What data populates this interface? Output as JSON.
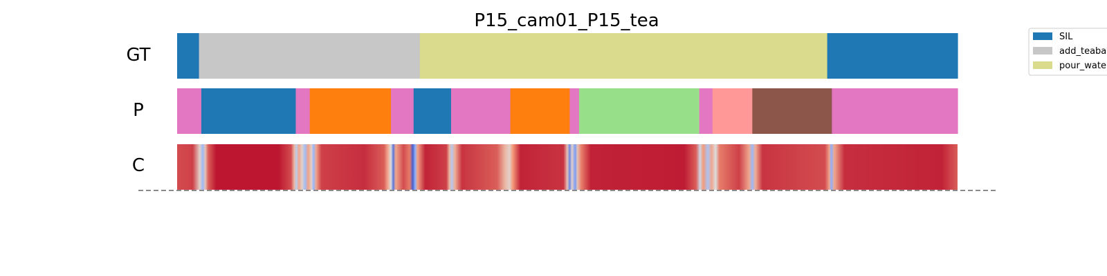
{
  "chart_data": {
    "type": "segmentation-timeline",
    "title": "P15_cam01_P15_tea",
    "rows": [
      {
        "label": "GT",
        "segments": [
          {
            "start": 0.0,
            "end": 0.028,
            "action": "SIL",
            "color": "#1f77b4"
          },
          {
            "start": 0.028,
            "end": 0.311,
            "action": "add_teabag",
            "color": "#c7c7c7"
          },
          {
            "start": 0.311,
            "end": 0.833,
            "action": "pour_water",
            "color": "#dbdb8d"
          },
          {
            "start": 0.833,
            "end": 1.0,
            "action": "SIL",
            "color": "#1f77b4"
          }
        ]
      },
      {
        "label": "P",
        "segments": [
          {
            "start": 0.0,
            "end": 0.031,
            "color": "#e377c2"
          },
          {
            "start": 0.031,
            "end": 0.152,
            "color": "#1f77b4"
          },
          {
            "start": 0.152,
            "end": 0.17,
            "color": "#e377c2"
          },
          {
            "start": 0.17,
            "end": 0.274,
            "color": "#ff7f0e"
          },
          {
            "start": 0.274,
            "end": 0.303,
            "color": "#e377c2"
          },
          {
            "start": 0.303,
            "end": 0.351,
            "color": "#1f77b4"
          },
          {
            "start": 0.351,
            "end": 0.427,
            "color": "#e377c2"
          },
          {
            "start": 0.427,
            "end": 0.503,
            "color": "#ff7f0e"
          },
          {
            "start": 0.503,
            "end": 0.515,
            "color": "#e377c2"
          },
          {
            "start": 0.515,
            "end": 0.669,
            "color": "#98df8a"
          },
          {
            "start": 0.669,
            "end": 0.686,
            "color": "#e377c2"
          },
          {
            "start": 0.686,
            "end": 0.737,
            "color": "#ff9896"
          },
          {
            "start": 0.737,
            "end": 0.839,
            "color": "#8c564b"
          },
          {
            "start": 0.839,
            "end": 1.0,
            "color": "#e377c2"
          }
        ]
      },
      {
        "label": "C",
        "colormap": "coolwarm",
        "confidence_points": [
          [
            0.0,
            0.88
          ],
          [
            0.02,
            0.9
          ],
          [
            0.029,
            0.55
          ],
          [
            0.033,
            0.3
          ],
          [
            0.036,
            0.6
          ],
          [
            0.04,
            0.85
          ],
          [
            0.05,
            0.97
          ],
          [
            0.13,
            0.97
          ],
          [
            0.146,
            0.88
          ],
          [
            0.15,
            0.65
          ],
          [
            0.153,
            0.4
          ],
          [
            0.156,
            0.7
          ],
          [
            0.16,
            0.55
          ],
          [
            0.164,
            0.32
          ],
          [
            0.168,
            0.72
          ],
          [
            0.172,
            0.55
          ],
          [
            0.175,
            0.28
          ],
          [
            0.178,
            0.7
          ],
          [
            0.185,
            0.9
          ],
          [
            0.24,
            0.93
          ],
          [
            0.265,
            0.85
          ],
          [
            0.27,
            0.7
          ],
          [
            0.274,
            0.5
          ],
          [
            0.277,
            0.1
          ],
          [
            0.28,
            0.7
          ],
          [
            0.29,
            0.88
          ],
          [
            0.298,
            0.8
          ],
          [
            0.302,
            0.05
          ],
          [
            0.305,
            0.25
          ],
          [
            0.308,
            0.72
          ],
          [
            0.318,
            0.95
          ],
          [
            0.345,
            0.9
          ],
          [
            0.349,
            0.65
          ],
          [
            0.352,
            0.38
          ],
          [
            0.356,
            0.68
          ],
          [
            0.365,
            0.92
          ],
          [
            0.41,
            0.85
          ],
          [
            0.42,
            0.65
          ],
          [
            0.426,
            0.55
          ],
          [
            0.43,
            0.75
          ],
          [
            0.44,
            0.95
          ],
          [
            0.495,
            0.92
          ],
          [
            0.5,
            0.6
          ],
          [
            0.503,
            0.15
          ],
          [
            0.506,
            0.55
          ],
          [
            0.51,
            0.2
          ],
          [
            0.513,
            0.6
          ],
          [
            0.518,
            0.8
          ],
          [
            0.53,
            0.95
          ],
          [
            0.65,
            0.96
          ],
          [
            0.665,
            0.85
          ],
          [
            0.67,
            0.45
          ],
          [
            0.674,
            0.75
          ],
          [
            0.68,
            0.35
          ],
          [
            0.685,
            0.7
          ],
          [
            0.69,
            0.5
          ],
          [
            0.695,
            0.8
          ],
          [
            0.72,
            0.9
          ],
          [
            0.733,
            0.7
          ],
          [
            0.737,
            0.3
          ],
          [
            0.741,
            0.68
          ],
          [
            0.75,
            0.92
          ],
          [
            0.83,
            0.88
          ],
          [
            0.836,
            0.7
          ],
          [
            0.838,
            0.25
          ],
          [
            0.842,
            0.7
          ],
          [
            0.855,
            0.93
          ],
          [
            0.98,
            0.95
          ],
          [
            1.0,
            0.85
          ]
        ]
      }
    ],
    "legend": {
      "placement": "top-right",
      "entries": [
        {
          "label": "SIL",
          "color": "#1f77b4"
        },
        {
          "label": "add_teabag",
          "color": "#c7c7c7"
        },
        {
          "label": "pour_water",
          "color": "#dbdb8d"
        }
      ]
    }
  }
}
